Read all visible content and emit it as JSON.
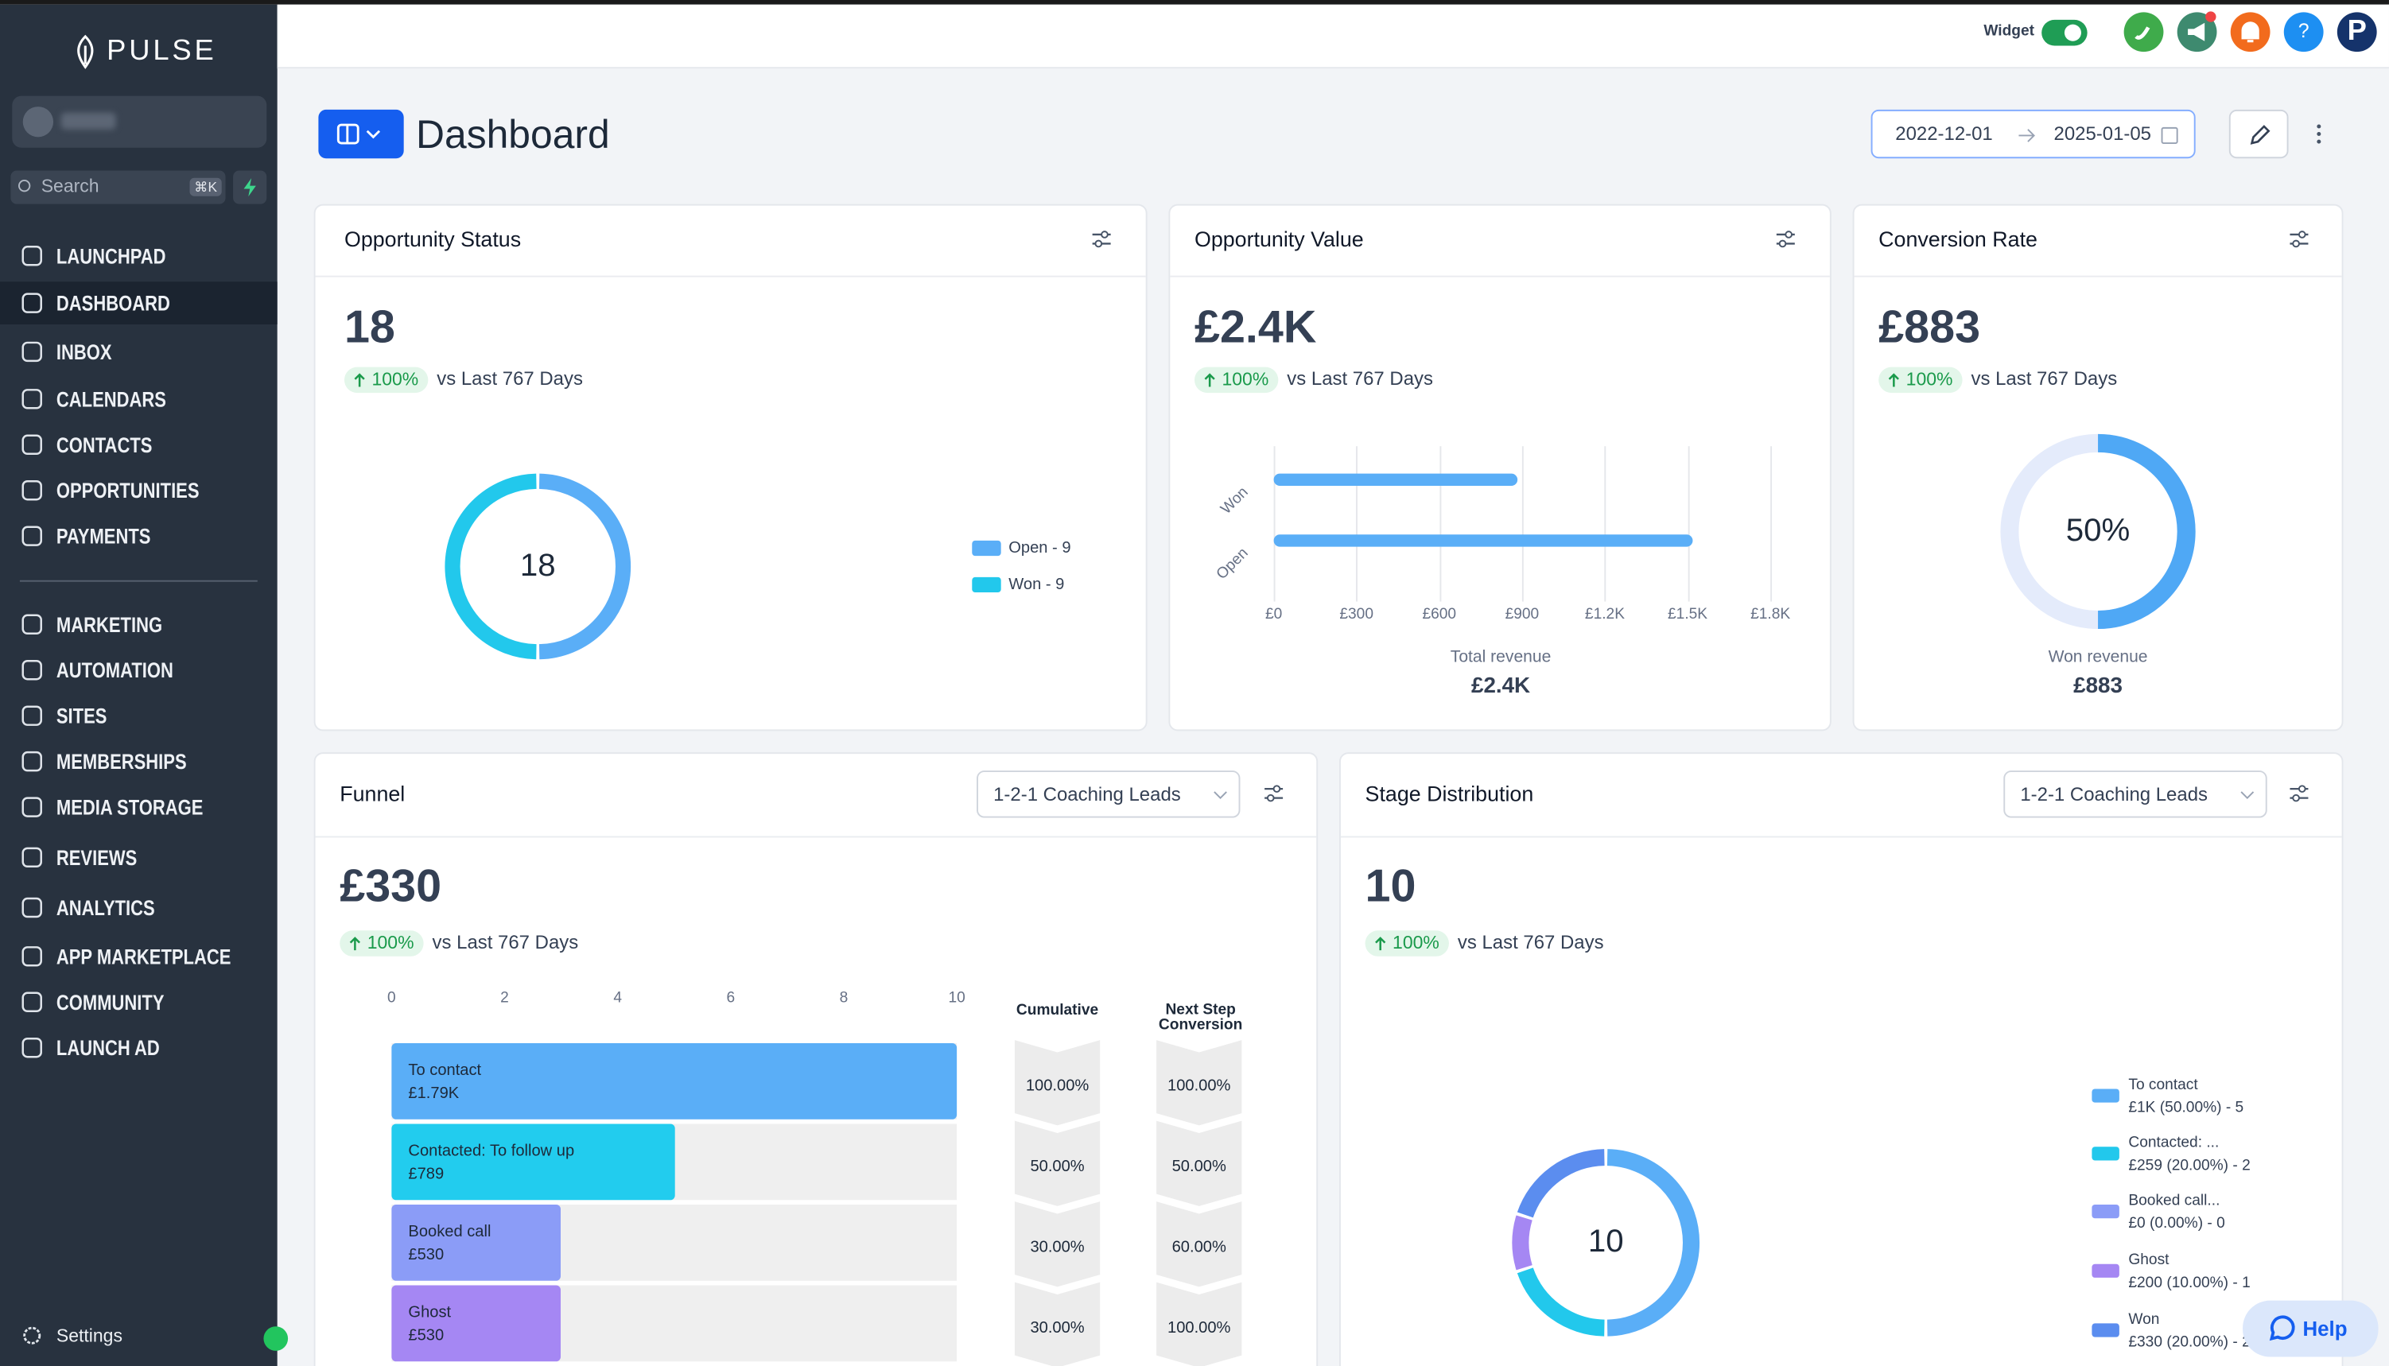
{
  "sidebar": {
    "brand": "PULSE",
    "search": "Search",
    "shortcut": "⌘K",
    "nav": [
      "LAUNCHPAD",
      "DASHBOARD",
      "INBOX",
      "CALENDARS",
      "CONTACTS",
      "OPPORTUNITIES",
      "PAYMENTS"
    ],
    "nav_secondary": [
      "MARKETING",
      "AUTOMATION",
      "SITES",
      "MEMBERSHIPS",
      "MEDIA STORAGE",
      "REVIEWS",
      "ANALYTICS",
      "APP MARKETPLACE",
      "COMMUNITY",
      "LAUNCH AD"
    ],
    "settings": "Settings"
  },
  "topbar": {
    "widget": "Widget",
    "help_icon": "?",
    "avatar": "P"
  },
  "header": {
    "title": "Dashboard",
    "date_from": "2022-12-01",
    "date_to": "2025-01-05"
  },
  "opportunity_status": {
    "title": "Opportunity Status",
    "value": "18",
    "change": "100%",
    "comparison": "vs Last 767 Days",
    "chart_data": {
      "type": "donut",
      "center_label": "18",
      "series": [
        {
          "name": "Open - 9",
          "value": 9,
          "color": "#5aaef7"
        },
        {
          "name": "Won - 9",
          "value": 9,
          "color": "#22c8ec"
        }
      ]
    }
  },
  "opportunity_value": {
    "title": "Opportunity Value",
    "value": "£2.4K",
    "change": "100%",
    "comparison": "vs Last 767 Days",
    "chart_data": {
      "type": "bar",
      "orientation": "horizontal",
      "categories": [
        "Won",
        "Open"
      ],
      "values": [
        883,
        1517
      ],
      "color": "#5aaef7",
      "xlim": [
        0,
        1800
      ],
      "xticks": [
        {
          "value": 0,
          "label": "£0"
        },
        {
          "value": 300,
          "label": "£300"
        },
        {
          "value": 600,
          "label": "£600"
        },
        {
          "value": 900,
          "label": "£900"
        },
        {
          "value": 1200,
          "label": "£1.2K"
        },
        {
          "value": 1500,
          "label": "£1.5K"
        },
        {
          "value": 1800,
          "label": "£1.8K"
        }
      ],
      "grid": true,
      "xlabel": "Total revenue",
      "total": "£2.4K"
    }
  },
  "conversion_rate": {
    "title": "Conversion Rate",
    "value": "£883",
    "change": "100%",
    "comparison": "vs Last 767 Days",
    "chart_data": {
      "type": "progress_ring",
      "values": [
        50
      ],
      "value_labels": [
        "50%"
      ],
      "ylim": [
        0,
        100
      ],
      "color": "#4fa8f5",
      "track_color": "#e4ebfb",
      "xlabel": "Won revenue",
      "total": "£883"
    }
  },
  "funnel": {
    "title": "Funnel",
    "filter": "1-2-1 Coaching Leads",
    "value": "£330",
    "change": "100%",
    "comparison": "vs Last 767 Days",
    "chart_data": {
      "type": "bar",
      "orientation": "horizontal",
      "categories": [
        "To contact",
        "Contacted: To follow up",
        "Booked call",
        "Ghost"
      ],
      "amounts": [
        "£1.79K",
        "£789",
        "£530",
        "£530"
      ],
      "values": [
        10,
        5,
        3,
        3
      ],
      "colors": [
        "#5aaef7",
        "#22ccee",
        "#8b9cf7",
        "#a587f3"
      ],
      "xlim": [
        0,
        10
      ],
      "xticks": [
        0,
        2,
        4,
        6,
        8,
        10
      ],
      "columns": [
        {
          "name": "Cumulative",
          "values": [
            "100.00%",
            "50.00%",
            "30.00%",
            "30.00%"
          ]
        },
        {
          "name": "Next Step Conversion",
          "values": [
            "100.00%",
            "50.00%",
            "60.00%",
            "100.00%"
          ]
        }
      ]
    }
  },
  "stage_distribution": {
    "title": "Stage Distribution",
    "filter": "1-2-1 Coaching Leads",
    "value": "10",
    "change": "100%",
    "comparison": "vs Last 767 Days",
    "chart_data": {
      "type": "donut",
      "center_label": "10",
      "series": [
        {
          "name": "To contact",
          "detail": "£1K (50.00%) - 5",
          "value": 5,
          "color": "#5aaef7"
        },
        {
          "name": "Contacted: ...",
          "detail": "£259 (20.00%) - 2",
          "value": 2,
          "color": "#22c8ec"
        },
        {
          "name": "Booked call...",
          "detail": "£0 (0.00%) - 0",
          "value": 0,
          "color": "#8b9cf7"
        },
        {
          "name": "Ghost",
          "detail": "£200 (10.00%) - 1",
          "value": 1,
          "color": "#a587f3"
        },
        {
          "name": "Won",
          "detail": "£330 (20.00%) - 2",
          "value": 2,
          "color": "#5b8def"
        }
      ]
    }
  },
  "help": {
    "label": "Help"
  }
}
